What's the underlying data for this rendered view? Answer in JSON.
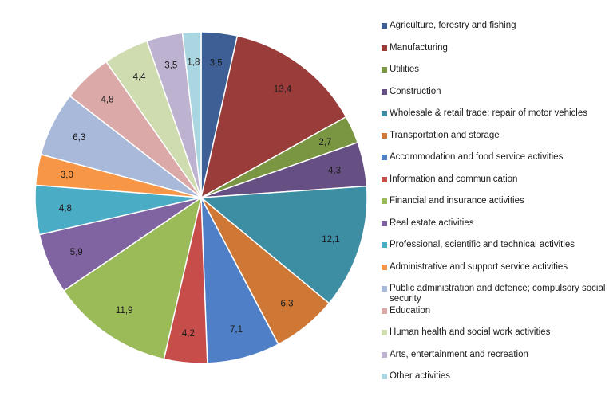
{
  "chart_data": {
    "type": "pie",
    "start": "12 o'clock",
    "direction": "clockwise",
    "slices": [
      {
        "label": "Agriculture, forestry and fishing",
        "value": 3.5,
        "value_label": "3,5",
        "color": "#3e5f96"
      },
      {
        "label": "Manufacturing",
        "value": 13.4,
        "value_label": "13,4",
        "color": "#993c3a"
      },
      {
        "label": "Utilities",
        "value": 2.7,
        "value_label": "2,7",
        "color": "#7a9642"
      },
      {
        "label": "Construction",
        "value": 4.3,
        "value_label": "4,3",
        "color": "#654f83"
      },
      {
        "label": "Wholesale & retail trade; repair of motor vehicles",
        "value": 12.1,
        "value_label": "12,1",
        "color": "#3d8da3"
      },
      {
        "label": "Transportation and storage",
        "value": 6.3,
        "value_label": "6,3",
        "color": "#cf7836"
      },
      {
        "label": "Accommodation and food service activities",
        "value": 7.1,
        "value_label": "7,1",
        "color": "#4f7fc6"
      },
      {
        "label": "Information and communication",
        "value": 4.2,
        "value_label": "4,2",
        "color": "#c64d4a"
      },
      {
        "label": "Financial and insurance activities",
        "value": 11.9,
        "value_label": "11,9",
        "color": "#9bbb59"
      },
      {
        "label": "Real estate activities",
        "value": 5.9,
        "value_label": "5,9",
        "color": "#8064a2"
      },
      {
        "label": "Professional, scientific and technical activities",
        "value": 4.8,
        "value_label": "4,8",
        "color": "#4bacc6"
      },
      {
        "label": "Administrative and support service activities",
        "value": 3.0,
        "value_label": "3,0",
        "color": "#f79646"
      },
      {
        "label": "Public administration and defence; compulsory social security",
        "value": 6.3,
        "value_label": "6,3",
        "color": "#a9b9d9"
      },
      {
        "label": "Education",
        "value": 4.8,
        "value_label": "4,8",
        "color": "#dba9a8"
      },
      {
        "label": "Human health and social work activities",
        "value": 4.4,
        "value_label": "4,4",
        "color": "#cfdcb0"
      },
      {
        "label": "Arts, entertainment and recreation",
        "value": 3.5,
        "value_label": "3,5",
        "color": "#bdb2cf"
      },
      {
        "label": "Other activities",
        "value": 1.8,
        "value_label": "1,8",
        "color": "#a9d6e0"
      }
    ],
    "legend_position": "right"
  }
}
